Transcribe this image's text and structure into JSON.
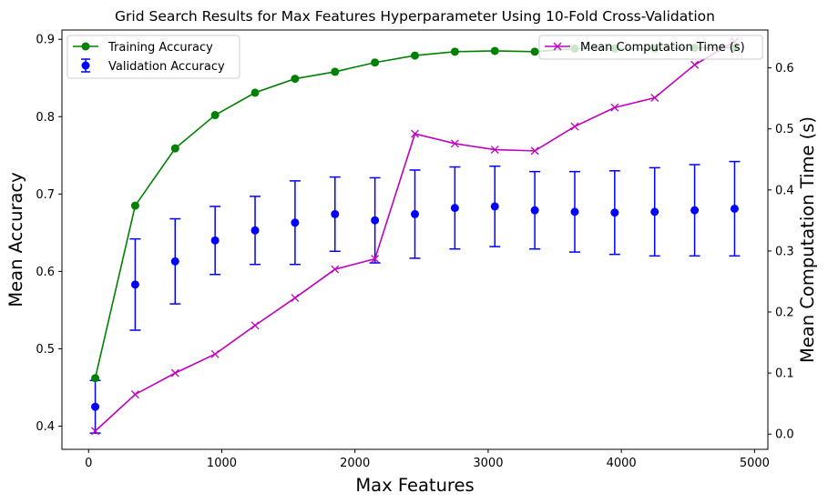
{
  "chart_data": {
    "type": "line",
    "title": "Grid Search Results for Max Features Hyperparameter Using 10-Fold Cross-Validation",
    "xlabel": "Max Features",
    "ylabel_left": "Mean Accuracy",
    "ylabel_right": "Mean Computation Time (s)",
    "xlim": [
      -200,
      5100
    ],
    "ylim_left": [
      0.37,
      0.912
    ],
    "ylim_right": [
      -0.025,
      0.662
    ],
    "x_ticks": [
      0,
      1000,
      2000,
      3000,
      4000,
      5000
    ],
    "y_ticks_left": [
      0.4,
      0.5,
      0.6,
      0.7,
      0.8,
      0.9
    ],
    "y_ticks_right": [
      0.0,
      0.1,
      0.2,
      0.3,
      0.4,
      0.5,
      0.6
    ],
    "grid": false,
    "x": [
      50,
      350,
      650,
      950,
      1250,
      1550,
      1850,
      2150,
      2450,
      2750,
      3050,
      3350,
      3650,
      3950,
      4250,
      4550,
      4850
    ],
    "series": [
      {
        "name": "Training Accuracy",
        "axis": "left",
        "color": "#008000",
        "marker": "circle",
        "values": [
          0.462,
          0.685,
          0.759,
          0.802,
          0.831,
          0.849,
          0.858,
          0.87,
          0.879,
          0.884,
          0.885,
          0.884,
          0.888,
          0.888,
          0.888,
          0.889,
          0.889
        ]
      },
      {
        "name": "Validation Accuracy",
        "axis": "left",
        "color": "#0000ff",
        "marker": "circle-errorbar",
        "values": [
          0.425,
          0.583,
          0.613,
          0.64,
          0.653,
          0.663,
          0.674,
          0.666,
          0.674,
          0.682,
          0.684,
          0.679,
          0.677,
          0.676,
          0.677,
          0.679,
          0.681
        ],
        "error": [
          0.034,
          0.059,
          0.055,
          0.044,
          0.044,
          0.054,
          0.048,
          0.055,
          0.057,
          0.053,
          0.052,
          0.05,
          0.052,
          0.054,
          0.057,
          0.059,
          0.061
        ]
      },
      {
        "name": "Mean Computation Time (s)",
        "axis": "right",
        "color": "#bf00bf",
        "marker": "x",
        "values": [
          0.005,
          0.065,
          0.1,
          0.131,
          0.178,
          0.223,
          0.27,
          0.287,
          0.492,
          0.476,
          0.466,
          0.464,
          0.504,
          0.535,
          0.551,
          0.605,
          0.643
        ]
      }
    ],
    "legends": [
      {
        "location": "upper-left",
        "entries": [
          "Training Accuracy",
          "Validation Accuracy"
        ]
      },
      {
        "location": "upper-right",
        "entries": [
          "Mean Computation Time (s)"
        ]
      }
    ]
  }
}
